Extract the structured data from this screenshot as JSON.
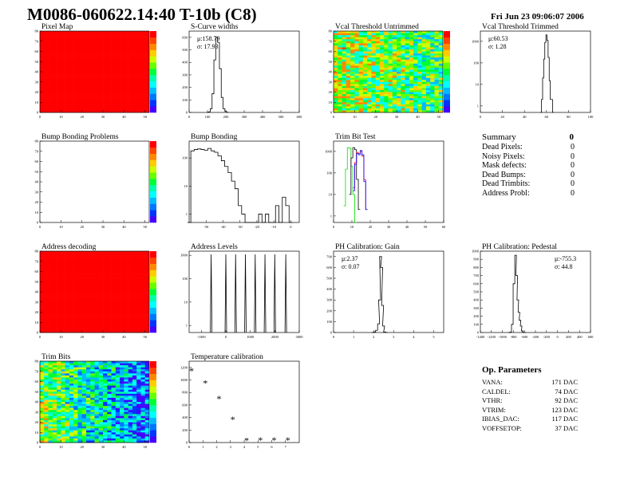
{
  "header": {
    "title": "M0086-060622.14:40 T-10b (C8)",
    "date": "Fri Jun 23 09:06:07 2006"
  },
  "summary": {
    "title": "Summary",
    "total": "0",
    "rows": [
      {
        "label": "Dead Pixels:",
        "value": "0"
      },
      {
        "label": "Noisy Pixels:",
        "value": "0"
      },
      {
        "label": "Mask defects:",
        "value": "0"
      },
      {
        "label": "Dead Bumps:",
        "value": "0"
      },
      {
        "label": "Dead Trimbits:",
        "value": "0"
      },
      {
        "label": "Address Probl:",
        "value": "0"
      }
    ]
  },
  "op_parameters": {
    "title": "Op. Parameters",
    "rows": [
      {
        "label": "VANA:",
        "value": "171 DAC"
      },
      {
        "label": "CALDEL:",
        "value": "74 DAC"
      },
      {
        "label": "VTHR:",
        "value": "92 DAC"
      },
      {
        "label": "VTRIM:",
        "value": "123 DAC"
      },
      {
        "label": "IBIAS_DAC:",
        "value": "117 DAC"
      },
      {
        "label": "VOFFSETOP:",
        "value": "37 DAC"
      }
    ]
  },
  "chart_data": [
    {
      "id": "pixel-map",
      "type": "heatmap",
      "title": "Pixel Map",
      "xlim": [
        0,
        52
      ],
      "ylim": [
        0,
        80
      ],
      "zlim": [
        0,
        10
      ],
      "uniform_value": 10,
      "xticks": [
        0,
        10,
        20,
        30,
        40,
        50
      ],
      "yticks": [
        0,
        10,
        20,
        30,
        40,
        50,
        60,
        70,
        80
      ]
    },
    {
      "id": "s-curve-widths",
      "type": "histogram",
      "title": "S-Curve widths",
      "xlim": [
        0,
        600
      ],
      "ylim": [
        0,
        650
      ],
      "xticks": [
        0,
        100,
        200,
        300,
        400,
        500,
        600
      ],
      "yticks": [
        0,
        100,
        200,
        300,
        400,
        500,
        600
      ],
      "stats": [
        "μ:158.79",
        "σ: 17.93"
      ],
      "x": [
        110,
        120,
        130,
        140,
        150,
        160,
        170,
        180,
        190,
        200
      ],
      "y": [
        5,
        30,
        150,
        420,
        600,
        560,
        350,
        120,
        30,
        8
      ]
    },
    {
      "id": "vcal-untrimmed",
      "type": "heatmap",
      "title": "Vcal Threshold Untrimmed",
      "xlim": [
        0,
        52
      ],
      "ylim": [
        0,
        80
      ],
      "zlim": [
        75,
        120
      ],
      "mean": 100,
      "xticks": [
        0,
        10,
        20,
        30,
        40,
        50
      ],
      "yticks": [
        0,
        10,
        20,
        30,
        40,
        50,
        60,
        70,
        80
      ]
    },
    {
      "id": "vcal-trimmed",
      "type": "histogram",
      "log": true,
      "title": "Vcal Threshold Trimmed",
      "xlim": [
        0,
        100
      ],
      "ylim": [
        0.5,
        3000
      ],
      "xticks": [
        0,
        20,
        40,
        60,
        80,
        100
      ],
      "yticks": [
        1,
        10,
        100,
        1000
      ],
      "stats": [
        "μ:60.53",
        "σ: 1.28"
      ],
      "x": [
        56,
        57,
        58,
        59,
        60,
        61,
        62,
        63,
        64,
        65
      ],
      "y": [
        2,
        20,
        150,
        900,
        2000,
        1100,
        180,
        15,
        2,
        2
      ]
    },
    {
      "id": "bump-bonding-problems",
      "type": "heatmap",
      "title": "Bump Bonding Problems",
      "xlim": [
        0,
        52
      ],
      "ylim": [
        0,
        80
      ],
      "zlim": [
        0,
        1
      ],
      "empty": true,
      "xticks": [
        0,
        10,
        20,
        30,
        40,
        50
      ],
      "yticks": [
        0,
        10,
        20,
        30,
        40,
        50,
        60,
        70,
        80
      ]
    },
    {
      "id": "bump-bonding",
      "type": "histogram",
      "log": true,
      "title": "Bump Bonding",
      "xlim": [
        -60,
        5
      ],
      "ylim": [
        0.5,
        400
      ],
      "xticks": [
        -50,
        -40,
        -30,
        -20,
        -10,
        0
      ],
      "yticks": [
        1,
        10,
        100
      ],
      "x": [
        -58,
        -56,
        -54,
        -52,
        -50,
        -48,
        -46,
        -44,
        -42,
        -40,
        -38,
        -36,
        -34,
        -32,
        -30,
        -28,
        -26,
        -24,
        -22,
        -20,
        -18,
        -16,
        -14,
        -12,
        -10,
        -8,
        -6,
        -4,
        -2
      ],
      "y": [
        180,
        200,
        210,
        200,
        190,
        220,
        180,
        160,
        120,
        80,
        50,
        30,
        15,
        8,
        2,
        1,
        0,
        0,
        0,
        0,
        1,
        0,
        1,
        0,
        0,
        2,
        0,
        4,
        2
      ]
    },
    {
      "id": "trim-bit-test",
      "type": "histogram",
      "log": true,
      "title": "Trim Bit Test",
      "xlim": [
        0,
        60
      ],
      "ylim": [
        0.5,
        3000
      ],
      "xticks": [
        0,
        10,
        20,
        30,
        40,
        50,
        60
      ],
      "yticks": [
        1,
        10,
        100,
        1000
      ],
      "series": [
        {
          "color": "#00dd00",
          "x": [
            6,
            7,
            8,
            9,
            10,
            11,
            12
          ],
          "y": [
            3,
            150,
            1500,
            1400,
            200,
            10,
            0
          ]
        },
        {
          "color": "#000000",
          "x": [
            9,
            10,
            11,
            12,
            13,
            14
          ],
          "y": [
            10,
            500,
            1500,
            1200,
            50,
            2
          ]
        },
        {
          "color": "#ff0000",
          "x": [
            11,
            12,
            13,
            14,
            15,
            16,
            17,
            18
          ],
          "y": [
            20,
            300,
            900,
            800,
            1000,
            600,
            50,
            2
          ]
        },
        {
          "color": "#0000ff",
          "x": [
            11,
            12,
            13,
            14,
            15,
            16,
            17,
            18
          ],
          "y": [
            15,
            250,
            800,
            700,
            1100,
            700,
            40,
            2
          ]
        }
      ]
    },
    {
      "id": "address-decoding",
      "type": "heatmap",
      "title": "Address decoding",
      "xlim": [
        0,
        52
      ],
      "ylim": [
        0,
        80
      ],
      "zlim": [
        0,
        1
      ],
      "uniform_value": 1,
      "xticks": [
        0,
        10,
        20,
        30,
        40,
        50
      ],
      "yticks": [
        0,
        10,
        20,
        30,
        40,
        50,
        60,
        70,
        80
      ]
    },
    {
      "id": "address-levels",
      "type": "histogram",
      "log": true,
      "title": "Address Levels",
      "xlim": [
        -1500,
        3000
      ],
      "ylim": [
        0.5,
        1500
      ],
      "xticks": [
        -1000,
        0,
        1000,
        2000,
        3000
      ],
      "yticks": [
        1,
        10,
        100,
        1000
      ],
      "spikes": [
        -600,
        0,
        400,
        800,
        1200,
        1600,
        2000,
        2450
      ]
    },
    {
      "id": "ph-gain",
      "type": "histogram",
      "title": "PH Calibration: Gain",
      "xlim": [
        0,
        5.5
      ],
      "ylim": [
        0,
        750
      ],
      "xticks": [
        0,
        1,
        2,
        3,
        4,
        5
      ],
      "yticks": [
        0,
        100,
        200,
        300,
        400,
        500,
        600,
        700
      ],
      "stats": [
        "μ:2.37",
        "σ: 0.07"
      ],
      "x": [
        2.05,
        2.15,
        2.25,
        2.3,
        2.35,
        2.4,
        2.45,
        2.5,
        2.55
      ],
      "y": [
        5,
        20,
        80,
        300,
        700,
        600,
        250,
        60,
        5
      ]
    },
    {
      "id": "ph-pedestal",
      "type": "histogram",
      "title": "PH Calibration: Pedestal",
      "xlim": [
        -1400,
        600
      ],
      "ylim": [
        0,
        1000
      ],
      "xticks": [
        -1400,
        -1200,
        -1000,
        -800,
        -600,
        -400,
        -200,
        0,
        200,
        400,
        600
      ],
      "yticks": [
        0,
        100,
        200,
        300,
        400,
        500,
        600,
        700,
        800,
        900,
        1000
      ],
      "stats": [
        "μ:-755.3",
        "σ: 44.8"
      ],
      "x": [
        -850,
        -820,
        -790,
        -760,
        -740,
        -720,
        -700,
        -680,
        -660,
        -640,
        -620
      ],
      "y": [
        5,
        100,
        600,
        950,
        700,
        400,
        250,
        150,
        80,
        20,
        3
      ]
    },
    {
      "id": "trim-bits",
      "type": "heatmap",
      "title": "Trim Bits",
      "xlim": [
        0,
        52
      ],
      "ylim": [
        0,
        80
      ],
      "zlim": [
        0,
        15
      ],
      "mean": 6,
      "xticks": [
        0,
        10,
        20,
        30,
        40,
        50
      ],
      "yticks": [
        0,
        10,
        20,
        30,
        40,
        50,
        60,
        70,
        80
      ]
    },
    {
      "id": "temperature-calibration",
      "type": "scatter",
      "title": "Temperature calibration",
      "xlim": [
        0,
        8
      ],
      "ylim": [
        0,
        1300
      ],
      "xticks": [
        0,
        1,
        2,
        3,
        4,
        5,
        6,
        7
      ],
      "yticks": [
        0,
        200,
        400,
        600,
        800,
        1000,
        1200
      ],
      "x": [
        0,
        1,
        2,
        3,
        4,
        5,
        6,
        7
      ],
      "y": [
        1150,
        950,
        700,
        370,
        30,
        40,
        40,
        40
      ]
    }
  ]
}
